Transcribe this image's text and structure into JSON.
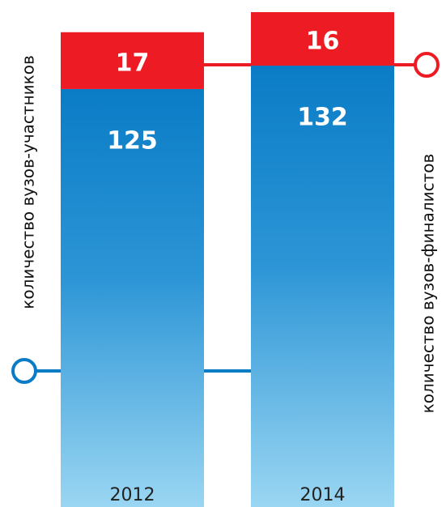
{
  "chart_data": {
    "type": "stacked-bar",
    "categories": [
      "2012",
      "2014"
    ],
    "series": [
      {
        "name": "количество вузов-участников",
        "color": "#0a7cc6",
        "values": [
          125,
          132
        ]
      },
      {
        "name": "количество вузов-финалистов",
        "color": "#ed1c24",
        "values": [
          17,
          16
        ]
      }
    ]
  }
}
